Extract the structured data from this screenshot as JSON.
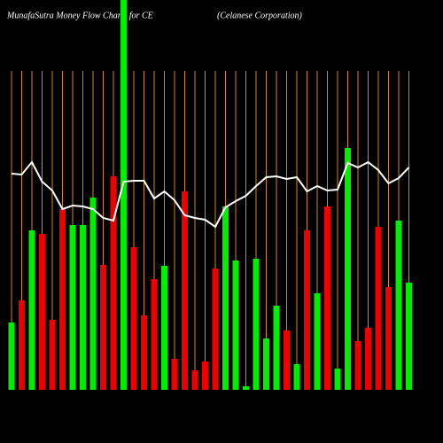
{
  "chart_data": {
    "type": "bar",
    "title": "MunafaSutra  Money Flow  Charts for CE",
    "subtitle": "(Celanese  Corporation)",
    "ylim": [
      0,
      440
    ],
    "divider_color": "#d2891e",
    "line_color": "#ffffff",
    "bar_colors": [
      "#00ee00",
      "#ee0000",
      "#00ee00",
      "#ee0000",
      "#ee0000",
      "#ee0000",
      "#00ee00",
      "#00ee00",
      "#00ee00",
      "#ee0000",
      "#ee0000",
      "#00ee00",
      "#ee0000",
      "#ee0000",
      "#ee0000",
      "#00ee00",
      "#ee0000",
      "#ee0000",
      "#ee0000",
      "#ee0000",
      "#ee0000",
      "#00ee00",
      "#00ee00",
      "#00ee00",
      "#00ee00",
      "#00ee00",
      "#00ee00",
      "#ee0000",
      "#00ee00",
      "#ee0000",
      "#00ee00",
      "#ee0000",
      "#00ee00",
      "#00ee00",
      "#ee0000",
      "#ee0000",
      "#ee0000",
      "#ee0000",
      "#00ee00",
      "#00ee00"
    ],
    "values": [
      76,
      101,
      180,
      176,
      79,
      204,
      186,
      186,
      217,
      141,
      241,
      440,
      161,
      84,
      125,
      140,
      35,
      224,
      22,
      32,
      137,
      207,
      146,
      4,
      148,
      58,
      95,
      67,
      29,
      180,
      109,
      207,
      24,
      273,
      55,
      70,
      184,
      116,
      191,
      121
    ],
    "line_values": [
      244,
      243,
      257,
      235,
      225,
      204,
      208,
      207,
      204,
      194,
      191,
      235,
      236,
      236,
      216,
      224,
      214,
      197,
      194,
      192,
      184,
      206,
      213,
      219,
      230,
      240,
      241,
      238,
      240,
      224,
      230,
      225,
      226,
      256,
      251,
      257,
      248,
      233,
      239,
      251
    ]
  }
}
